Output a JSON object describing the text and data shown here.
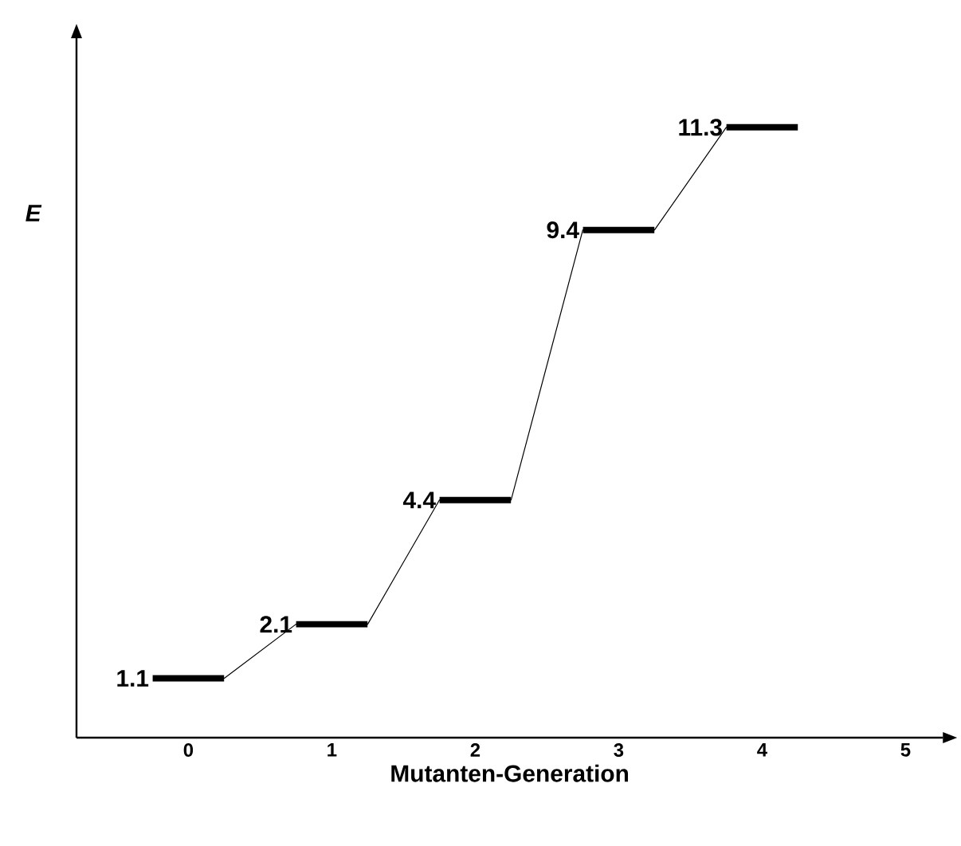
{
  "chart_data": {
    "type": "step",
    "xlabel": "Mutanten-Generation",
    "ylabel": "E",
    "x": [
      0,
      1,
      2,
      3,
      4
    ],
    "values": [
      1.1,
      2.1,
      4.4,
      9.4,
      11.3
    ],
    "color": "#000000",
    "data_labels": true,
    "xlim": [
      -0.78,
      5.26
    ],
    "xticks": [
      0,
      1,
      2,
      3,
      4,
      5
    ],
    "ylim": [
      0,
      12.95
    ],
    "grid": false
  }
}
